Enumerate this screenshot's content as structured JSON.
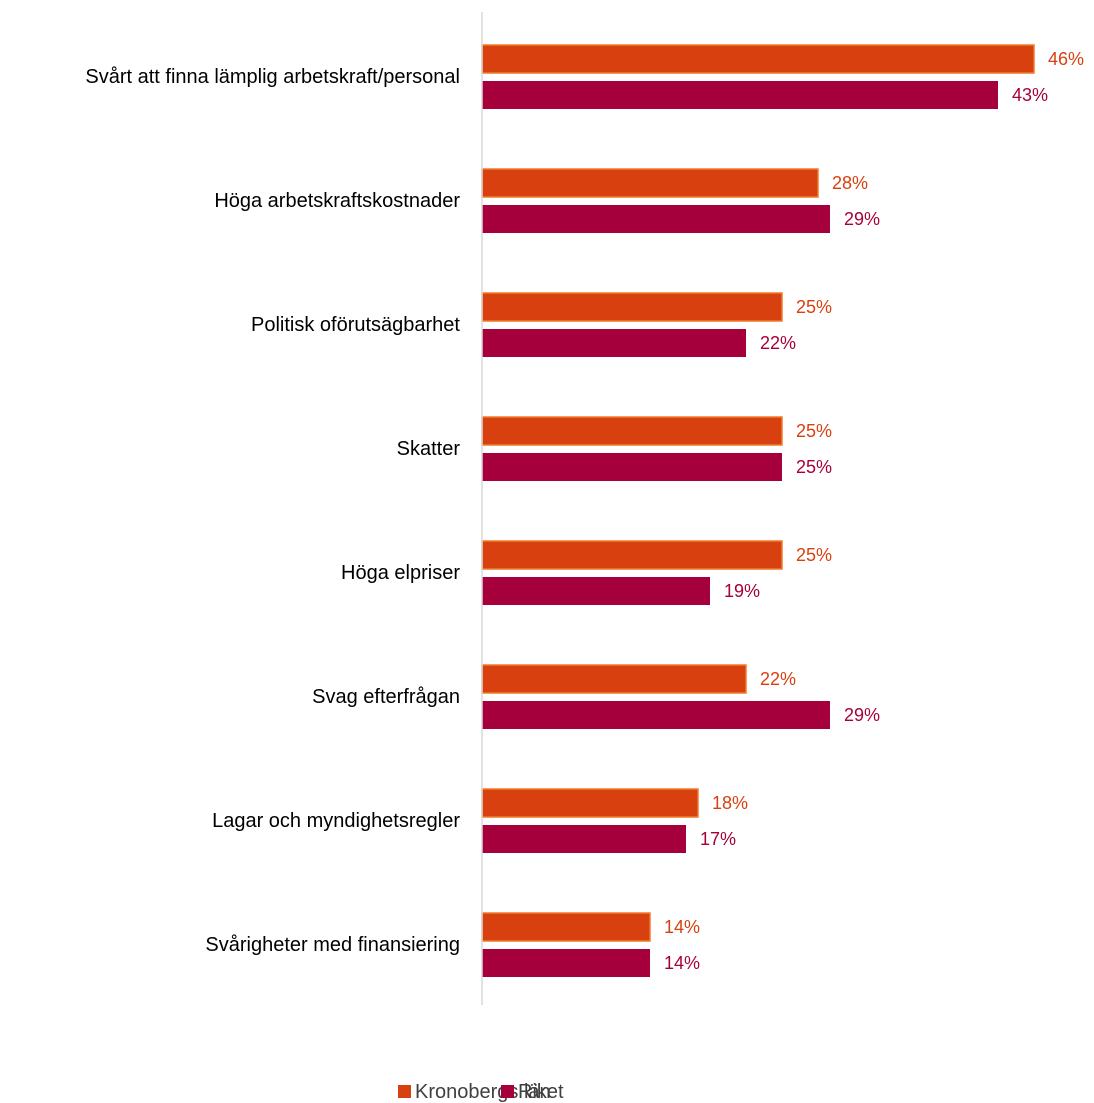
{
  "chart_data": {
    "type": "bar",
    "orientation": "horizontal",
    "categories": [
      "Svårt att finna lämplig arbetskraft/personal",
      "Höga arbetskraftskostnader",
      "Politisk oförutsägbarhet",
      "Skatter",
      "Höga elpriser",
      "Svag efterfrågan",
      "Lagar och myndighetsregler",
      "Svårigheter med finansiering"
    ],
    "series": [
      {
        "name": "Kronobergs län",
        "color": "#D9400F",
        "values": [
          46,
          28,
          25,
          25,
          25,
          22,
          18,
          14
        ],
        "labels": [
          "46%",
          "28%",
          "25%",
          "25%",
          "25%",
          "22%",
          "18%",
          "14%"
        ]
      },
      {
        "name": "Riket",
        "color": "#A6003C",
        "values": [
          43,
          29,
          22,
          25,
          19,
          29,
          17,
          14
        ],
        "labels": [
          "43%",
          "29%",
          "22%",
          "25%",
          "19%",
          "29%",
          "17%",
          "14%"
        ]
      }
    ],
    "unit": "%",
    "xlim": [
      0,
      50
    ],
    "grid": false,
    "legend_position": "bottom-center",
    "title": "",
    "xlabel": "",
    "ylabel": ""
  }
}
